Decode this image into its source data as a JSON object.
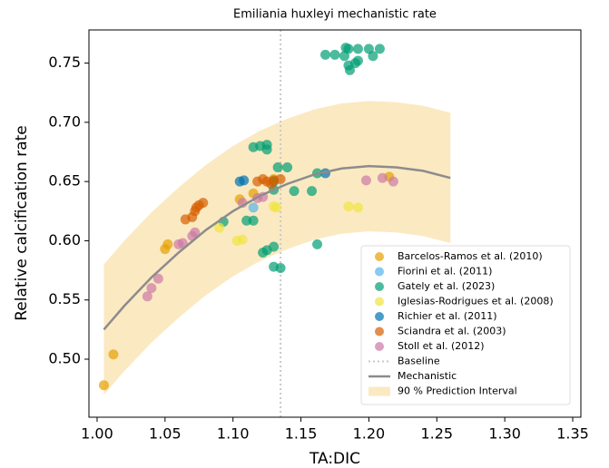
{
  "chart_data": {
    "type": "scatter",
    "title": "Emiliania huxleyi mechanistic rate",
    "x_label": "TA:DIC",
    "y_label": "Relative calcification rate",
    "xlim": [
      0.994,
      1.356
    ],
    "ylim": [
      0.451,
      0.778
    ],
    "xticks": [
      {
        "value": 1.0,
        "label": "1.00"
      },
      {
        "value": 1.05,
        "label": "1.05"
      },
      {
        "value": 1.1,
        "label": "1.10"
      },
      {
        "value": 1.15,
        "label": "1.15"
      },
      {
        "value": 1.2,
        "label": "1.20"
      },
      {
        "value": 1.25,
        "label": "1.25"
      },
      {
        "value": 1.3,
        "label": "1.30"
      },
      {
        "value": 1.35,
        "label": "1.35"
      }
    ],
    "yticks": [
      {
        "value": 0.5,
        "label": "0.50"
      },
      {
        "value": 0.55,
        "label": "0.55"
      },
      {
        "value": 0.6,
        "label": "0.60"
      },
      {
        "value": 0.65,
        "label": "0.65"
      },
      {
        "value": 0.7,
        "label": "0.70"
      },
      {
        "value": 0.75,
        "label": "0.75"
      }
    ],
    "legend": "lower right",
    "series": [
      {
        "name": "Barcelos-Ramos et al. (2010)",
        "color": "#E69F00",
        "x": [
          1.005,
          1.012,
          1.05,
          1.052,
          1.105,
          1.115,
          1.13,
          1.215
        ],
        "values": [
          0.478,
          0.504,
          0.593,
          0.597,
          0.635,
          0.64,
          0.652,
          0.654
        ]
      },
      {
        "name": "Fiorini et al. (2011)",
        "color": "#56B4E9",
        "x": [
          1.115
        ],
        "values": [
          0.628
        ]
      },
      {
        "name": "Gately et al. (2023)",
        "color": "#009E73",
        "x": [
          1.183,
          1.185,
          1.192,
          1.2,
          1.208,
          1.175,
          1.168,
          1.182,
          1.19,
          1.192,
          1.203,
          1.185,
          1.186,
          1.115,
          1.12,
          1.125,
          1.125,
          1.133,
          1.14,
          1.13,
          1.13,
          1.145,
          1.158,
          1.162,
          1.11,
          1.115,
          1.093,
          1.122,
          1.125,
          1.13,
          1.162,
          1.13,
          1.135
        ],
        "values": [
          0.763,
          0.762,
          0.762,
          0.762,
          0.762,
          0.757,
          0.757,
          0.756,
          0.75,
          0.752,
          0.756,
          0.748,
          0.744,
          0.679,
          0.68,
          0.681,
          0.677,
          0.662,
          0.662,
          0.65,
          0.643,
          0.642,
          0.642,
          0.657,
          0.617,
          0.617,
          0.616,
          0.59,
          0.592,
          0.595,
          0.597,
          0.578,
          0.577
        ]
      },
      {
        "name": "Iglesias-Rodrigues et al. (2008)",
        "color": "#F0E442",
        "x": [
          1.09,
          1.103,
          1.107,
          1.13,
          1.132,
          1.185,
          1.192
        ],
        "values": [
          0.611,
          0.6,
          0.601,
          0.629,
          0.628,
          0.629,
          0.628
        ]
      },
      {
        "name": "Richier et al. (2011)",
        "color": "#0072B2",
        "x": [
          1.105,
          1.108,
          1.168
        ],
        "values": [
          0.65,
          0.651,
          0.657
        ]
      },
      {
        "name": "Sciandra et al. (2003)",
        "color": "#D55E00",
        "x": [
          1.065,
          1.07,
          1.072,
          1.073,
          1.075,
          1.078,
          1.118,
          1.122,
          1.125,
          1.128,
          1.13,
          1.135
        ],
        "values": [
          0.618,
          0.62,
          0.625,
          0.628,
          0.63,
          0.632,
          0.65,
          0.652,
          0.65,
          0.648,
          0.651,
          0.652
        ]
      },
      {
        "name": "Stoll et al. (2012)",
        "color": "#CC79A7",
        "x": [
          1.037,
          1.04,
          1.045,
          1.06,
          1.063,
          1.07,
          1.072,
          1.107,
          1.118,
          1.122,
          1.198,
          1.21,
          1.218
        ],
        "values": [
          0.553,
          0.56,
          0.568,
          0.597,
          0.598,
          0.604,
          0.607,
          0.632,
          0.636,
          0.637,
          0.651,
          0.653,
          0.65
        ]
      }
    ],
    "baseline": {
      "name": "Baseline",
      "color": "#c8c8c8",
      "x": 1.135
    },
    "mechanistic": {
      "name": "Mechanistic",
      "color": "#8c8c8c",
      "x": [
        1.005,
        1.02,
        1.04,
        1.06,
        1.08,
        1.1,
        1.12,
        1.14,
        1.16,
        1.18,
        1.2,
        1.22,
        1.24,
        1.26
      ],
      "values": [
        0.525,
        0.545,
        0.569,
        0.59,
        0.609,
        0.625,
        0.638,
        0.648,
        0.656,
        0.661,
        0.663,
        0.662,
        0.659,
        0.653
      ]
    },
    "interval": {
      "name": "90 % Prediction Interval",
      "color": "#fbe9c2",
      "x": [
        1.005,
        1.02,
        1.04,
        1.06,
        1.08,
        1.1,
        1.12,
        1.14,
        1.16,
        1.18,
        1.2,
        1.22,
        1.24,
        1.26
      ],
      "lower": [
        0.47,
        0.49,
        0.514,
        0.535,
        0.554,
        0.57,
        0.583,
        0.593,
        0.601,
        0.606,
        0.608,
        0.607,
        0.604,
        0.598
      ],
      "upper": [
        0.58,
        0.6,
        0.624,
        0.645,
        0.664,
        0.68,
        0.693,
        0.703,
        0.711,
        0.716,
        0.718,
        0.717,
        0.714,
        0.708
      ]
    }
  }
}
